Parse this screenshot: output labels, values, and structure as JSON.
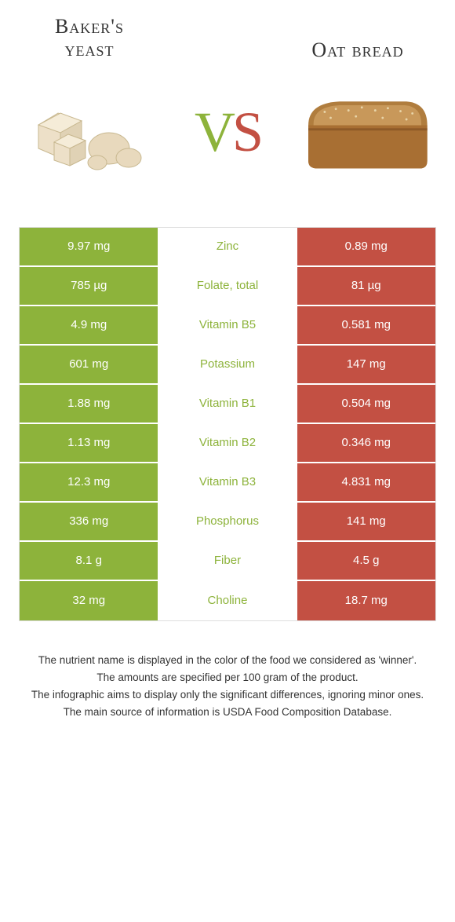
{
  "colors": {
    "left": "#8db33b",
    "right": "#c35043",
    "mid_bg": "#ffffff",
    "border": "#dddddd",
    "text": "#333333",
    "v_color": "#8db33b",
    "s_color": "#c35043"
  },
  "header": {
    "left_title_line1": "Baker's",
    "left_title_line2": "yeast",
    "right_title": "Oat bread",
    "vs_v": "V",
    "vs_s": "S"
  },
  "rows": [
    {
      "left": "9.97 mg",
      "mid": "Zinc",
      "right": "0.89 mg",
      "winner": "left"
    },
    {
      "left": "785 µg",
      "mid": "Folate, total",
      "right": "81 µg",
      "winner": "left"
    },
    {
      "left": "4.9 mg",
      "mid": "Vitamin B5",
      "right": "0.581 mg",
      "winner": "left"
    },
    {
      "left": "601 mg",
      "mid": "Potassium",
      "right": "147 mg",
      "winner": "left"
    },
    {
      "left": "1.88 mg",
      "mid": "Vitamin B1",
      "right": "0.504 mg",
      "winner": "left"
    },
    {
      "left": "1.13 mg",
      "mid": "Vitamin B2",
      "right": "0.346 mg",
      "winner": "left"
    },
    {
      "left": "12.3 mg",
      "mid": "Vitamin B3",
      "right": "4.831 mg",
      "winner": "left"
    },
    {
      "left": "336 mg",
      "mid": "Phosphorus",
      "right": "141 mg",
      "winner": "left"
    },
    {
      "left": "8.1 g",
      "mid": "Fiber",
      "right": "4.5 g",
      "winner": "left"
    },
    {
      "left": "32 mg",
      "mid": "Choline",
      "right": "18.7 mg",
      "winner": "left"
    }
  ],
  "footer": {
    "line1": "The nutrient name is displayed in the color of the food we considered as 'winner'.",
    "line2": "The amounts are specified per 100 gram of the product.",
    "line3": "The infographic aims to display only the significant differences, ignoring minor ones.",
    "line4": "The main source of information is USDA Food Composition Database."
  }
}
